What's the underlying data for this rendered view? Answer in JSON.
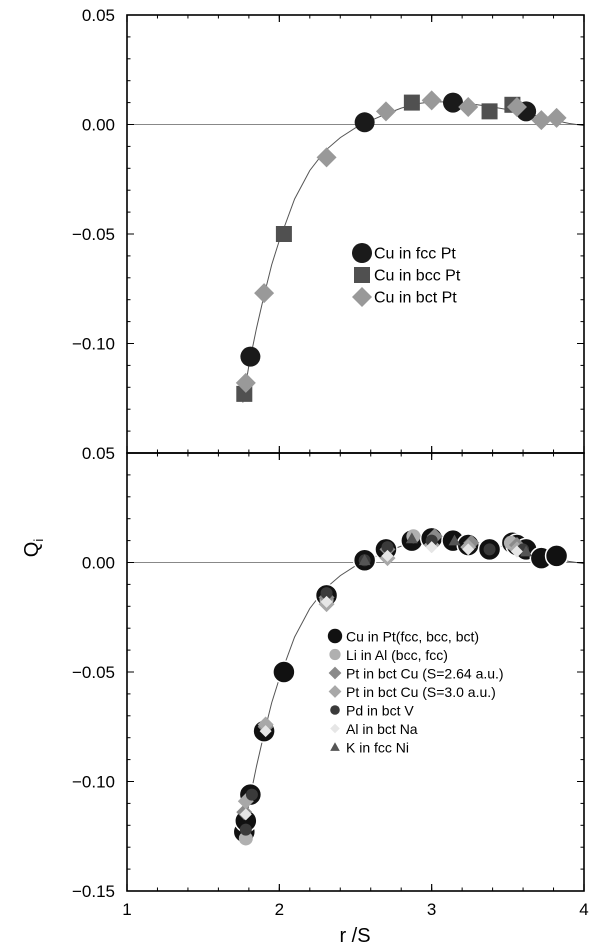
{
  "figure": {
    "ylabel": "Q",
    "ylabel_sub": "i",
    "xlabel": "r /S"
  },
  "chart_data": [
    {
      "type": "scatter",
      "panel": "top",
      "xlim": [
        1,
        4
      ],
      "ylim": [
        -0.15,
        0.05
      ],
      "y_ticks_shown": [
        0.05,
        0.0,
        -0.05,
        -0.1
      ],
      "y_tick_labels": [
        "0.05",
        "0.00",
        "−0.05",
        "−0.10"
      ],
      "x_ticks": [
        1,
        2,
        3,
        4
      ],
      "grid": false,
      "zero_line": true,
      "legend_position": "middle-right",
      "series": [
        {
          "name": "Cu in fcc Pt",
          "marker": "circle",
          "color": "#1a1a1a",
          "size": 10,
          "points": [
            [
              1.81,
              -0.106
            ],
            [
              2.56,
              0.001
            ],
            [
              3.14,
              0.01
            ],
            [
              3.62,
              0.006
            ]
          ]
        },
        {
          "name": "Cu in bcc Pt",
          "marker": "square",
          "color": "#505050",
          "size": 8,
          "points": [
            [
              1.77,
              -0.123
            ],
            [
              2.03,
              -0.05
            ],
            [
              2.87,
              0.01
            ],
            [
              3.38,
              0.006
            ],
            [
              3.53,
              0.009
            ]
          ]
        },
        {
          "name": "Cu in bct Pt",
          "marker": "diamond",
          "color": "#999999",
          "size": 10,
          "points": [
            [
              1.78,
              -0.118
            ],
            [
              1.9,
              -0.077
            ],
            [
              2.31,
              -0.015
            ],
            [
              2.7,
              0.006
            ],
            [
              3.0,
              0.011
            ],
            [
              3.24,
              0.008
            ],
            [
              3.56,
              0.008
            ],
            [
              3.72,
              0.002
            ],
            [
              3.82,
              0.003
            ]
          ]
        }
      ],
      "fit_curve": [
        [
          1.76,
          -0.127
        ],
        [
          1.8,
          -0.11
        ],
        [
          1.85,
          -0.093
        ],
        [
          1.9,
          -0.078
        ],
        [
          1.95,
          -0.064
        ],
        [
          2.0,
          -0.053
        ],
        [
          2.1,
          -0.034
        ],
        [
          2.2,
          -0.021
        ],
        [
          2.3,
          -0.012
        ],
        [
          2.4,
          -0.006
        ],
        [
          2.5,
          -0.0015
        ],
        [
          2.6,
          0.0018
        ],
        [
          2.7,
          0.0048
        ],
        [
          2.8,
          0.0075
        ],
        [
          2.9,
          0.0095
        ],
        [
          3.0,
          0.0103
        ],
        [
          3.1,
          0.0103
        ],
        [
          3.2,
          0.0098
        ],
        [
          3.3,
          0.009
        ],
        [
          3.4,
          0.008
        ],
        [
          3.5,
          0.0068
        ],
        [
          3.6,
          0.0054
        ],
        [
          3.7,
          0.0038
        ],
        [
          3.8,
          0.002
        ],
        [
          3.9,
          0.0005
        ],
        [
          4.0,
          -0.0005
        ]
      ]
    },
    {
      "type": "scatter",
      "panel": "bottom",
      "xlim": [
        1,
        4
      ],
      "ylim": [
        -0.15,
        0.05
      ],
      "y_ticks_shown": [
        0.05,
        0.0,
        -0.05,
        -0.1,
        -0.15
      ],
      "y_tick_labels": [
        "0.05",
        "0.00",
        "−0.05",
        "−0.10",
        "−0.15"
      ],
      "x_ticks": [
        1,
        2,
        3,
        4
      ],
      "x_tick_labels": [
        "1",
        "2",
        "3",
        "4"
      ],
      "grid": false,
      "zero_line": true,
      "legend_position": "lower-right",
      "series": [
        {
          "name": "Cu in Pt(fcc, bcc, bct)",
          "marker": "circle",
          "color": "#111111",
          "size": 11,
          "outline": "#ffffff",
          "points": [
            [
              1.77,
              -0.123
            ],
            [
              1.78,
              -0.118
            ],
            [
              1.81,
              -0.106
            ],
            [
              1.9,
              -0.077
            ],
            [
              2.03,
              -0.05
            ],
            [
              2.31,
              -0.015
            ],
            [
              2.56,
              0.001
            ],
            [
              2.7,
              0.006
            ],
            [
              2.87,
              0.01
            ],
            [
              3.0,
              0.011
            ],
            [
              3.14,
              0.01
            ],
            [
              3.24,
              0.008
            ],
            [
              3.38,
              0.006
            ],
            [
              3.53,
              0.009
            ],
            [
              3.56,
              0.008
            ],
            [
              3.62,
              0.006
            ],
            [
              3.72,
              0.002
            ],
            [
              3.82,
              0.003
            ]
          ]
        },
        {
          "name": "Li in Al (bcc, fcc)",
          "marker": "circle",
          "color": "#b0b0b0",
          "size": 7,
          "points": [
            [
              1.78,
              -0.126
            ],
            [
              2.31,
              -0.017
            ],
            [
              2.88,
              0.012
            ],
            [
              3.52,
              0.009
            ]
          ]
        },
        {
          "name": "Pt in bct Cu (S=2.64 a.u.)",
          "marker": "diamond",
          "color": "#8a8a8a",
          "size": 8,
          "points": [
            [
              1.77,
              -0.114
            ],
            [
              1.91,
              -0.075
            ],
            [
              2.31,
              -0.016
            ],
            [
              2.71,
              0.006
            ],
            [
              3.02,
              0.012
            ],
            [
              3.26,
              0.009
            ],
            [
              3.56,
              0.008
            ]
          ]
        },
        {
          "name": "Pt in bct Cu (S=3.0 a.u.)",
          "marker": "diamond",
          "color": "#a8a8a8",
          "size": 8,
          "points": [
            [
              1.78,
              -0.109
            ],
            [
              1.91,
              -0.074
            ],
            [
              2.31,
              -0.019
            ],
            [
              2.71,
              0.002
            ],
            [
              3.0,
              0.008
            ],
            [
              3.24,
              0.007
            ],
            [
              3.56,
              0.006
            ]
          ]
        },
        {
          "name": "Pd in bct V",
          "marker": "circle",
          "color": "#3a3a3a",
          "size": 6,
          "points": [
            [
              1.78,
              -0.122
            ],
            [
              1.82,
              -0.106
            ],
            [
              2.31,
              -0.014
            ],
            [
              2.56,
              0.001
            ],
            [
              2.71,
              0.007
            ],
            [
              3.0,
              0.01
            ],
            [
              3.38,
              0.006
            ],
            [
              3.6,
              0.006
            ]
          ]
        },
        {
          "name": "Al in bct Na",
          "marker": "diamond",
          "color": "#e6e6e6",
          "size": 6,
          "points": [
            [
              1.78,
              -0.115
            ],
            [
              1.91,
              -0.077
            ],
            [
              2.31,
              -0.018
            ],
            [
              2.71,
              0.003
            ],
            [
              3.0,
              0.007
            ],
            [
              3.24,
              0.006
            ],
            [
              3.56,
              0.005
            ]
          ]
        },
        {
          "name": "K in fcc Ni",
          "marker": "triangle",
          "color": "#555555",
          "size": 6,
          "points": [
            [
              2.56,
              0.001
            ],
            [
              2.87,
              0.011
            ],
            [
              3.15,
              0.01
            ],
            [
              3.62,
              0.005
            ]
          ]
        }
      ],
      "fit_curve": [
        [
          1.76,
          -0.127
        ],
        [
          1.8,
          -0.11
        ],
        [
          1.85,
          -0.093
        ],
        [
          1.9,
          -0.078
        ],
        [
          1.95,
          -0.064
        ],
        [
          2.0,
          -0.053
        ],
        [
          2.1,
          -0.034
        ],
        [
          2.2,
          -0.021
        ],
        [
          2.3,
          -0.012
        ],
        [
          2.4,
          -0.006
        ],
        [
          2.5,
          -0.0015
        ],
        [
          2.6,
          0.0018
        ],
        [
          2.7,
          0.0048
        ],
        [
          2.8,
          0.0075
        ],
        [
          2.9,
          0.0095
        ],
        [
          3.0,
          0.0103
        ],
        [
          3.1,
          0.0103
        ],
        [
          3.2,
          0.0098
        ],
        [
          3.3,
          0.009
        ],
        [
          3.4,
          0.008
        ],
        [
          3.5,
          0.0068
        ],
        [
          3.6,
          0.0054
        ],
        [
          3.7,
          0.0038
        ],
        [
          3.8,
          0.002
        ],
        [
          3.9,
          0.0005
        ],
        [
          4.0,
          -0.0005
        ]
      ]
    }
  ]
}
